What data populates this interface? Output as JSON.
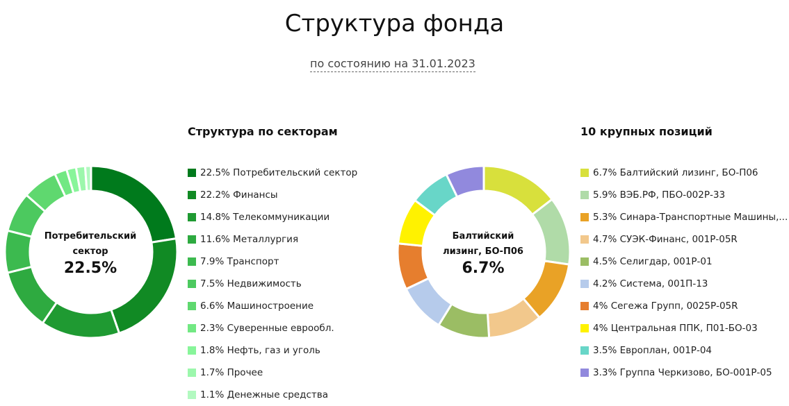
{
  "header": {
    "title": "Структура фонда",
    "date": "по состоянию на 31.01.2023"
  },
  "chart_data": [
    {
      "type": "pie",
      "title": "Структура по секторам",
      "donut": true,
      "center_label": "Потребительский сектор",
      "center_value": "22.5%",
      "categories": [
        "Потребительский сектор",
        "Финансы",
        "Телекоммуникации",
        "Металлургия",
        "Транспорт",
        "Недвижимость",
        "Машиностроение",
        "Суверенные еврообл.",
        "Нефть, газ и уголь",
        "Прочее",
        "Денежные средства"
      ],
      "values": [
        22.5,
        22.2,
        14.8,
        11.6,
        7.9,
        7.5,
        6.6,
        2.3,
        1.8,
        1.7,
        1.1
      ],
      "labels": [
        "22.5% Потребительский сектор",
        "22.2% Финансы",
        "14.8% Телекоммуникации",
        "11.6% Металлургия",
        "7.9% Транспорт",
        "7.5% Недвижимость",
        "6.6% Машиностроение",
        "2.3% Суверенные еврообл.",
        "1.8% Нефть, газ и уголь",
        "1.7% Прочее",
        "1.1% Денежные средства"
      ],
      "colors": [
        "#007a1c",
        "#118a24",
        "#1f9a32",
        "#2eaa40",
        "#3cba4f",
        "#4cc95f",
        "#5fd86f",
        "#72e883",
        "#88f59a",
        "#9cf7ac",
        "#b2f9c0"
      ]
    },
    {
      "type": "pie",
      "title": "10 крупных позиций",
      "donut": true,
      "center_label": "Балтийский лизинг, БО-П06",
      "center_value": "6.7%",
      "categories": [
        "Балтийский лизинг, БО-П06",
        "ВЭБ.РФ, ПБО-002Р-33",
        "Синара-Транспортные Машины,...",
        "СУЭК-Финанс, 001Р-05R",
        "Селигдар, 001Р-01",
        "Система, 001П-13",
        "Сегежа Групп, 0025Р-05R",
        "Центральная ППК, П01-БО-03",
        "Европлан, 001Р-04",
        "Группа Черкизово, БО-001Р-05"
      ],
      "values": [
        6.7,
        5.9,
        5.3,
        4.7,
        4.5,
        4.2,
        4,
        4,
        3.5,
        3.3
      ],
      "labels": [
        "6.7% Балтийский лизинг, БО-П06",
        "5.9% ВЭБ.РФ, ПБО-002Р-33",
        "5.3% Синара-Транспортные Машины,...",
        "4.7% СУЭК-Финанс, 001Р-05R",
        "4.5% Селигдар, 001Р-01",
        "4.2% Система, 001П-13",
        "4% Сегежа Групп, 0025Р-05R",
        "4% Центральная ППК, П01-БО-03",
        "3.5% Европлан, 001Р-04",
        "3.3% Группа Черкизово, БО-001Р-05"
      ],
      "colors": [
        "#d8e03c",
        "#b0dba8",
        "#e9a226",
        "#f2c88c",
        "#9bbd64",
        "#b6cbeb",
        "#e67e2e",
        "#fff200",
        "#68d6c8",
        "#9189dd"
      ]
    }
  ]
}
